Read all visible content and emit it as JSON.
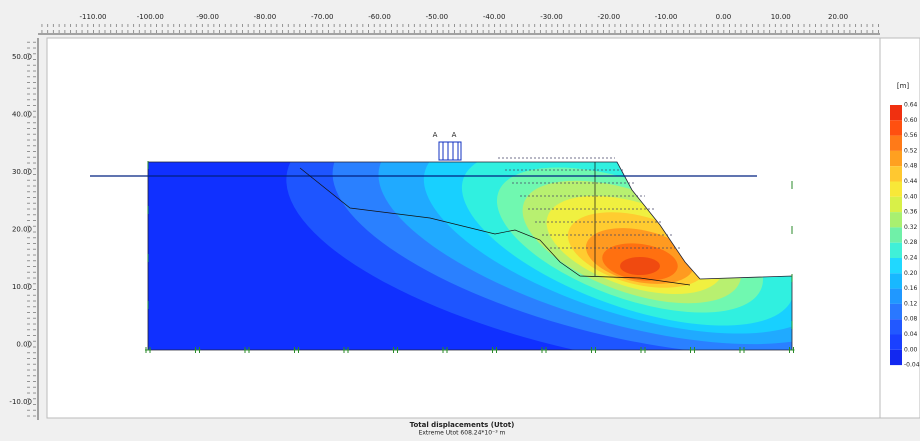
{
  "top_ruler": {
    "labels": [
      "-110.00",
      "-100.00",
      "-90.00",
      "-80.00",
      "-70.00",
      "-60.00",
      "-50.00",
      "-40.00",
      "-30.00",
      "-20.00",
      "-10.00",
      "0.00",
      "10.00",
      "20.00"
    ]
  },
  "left_ruler": {
    "labels": [
      "50.00",
      "40.00",
      "30.00",
      "20.00",
      "10.00",
      "0.00",
      "-10.00"
    ]
  },
  "load_labels": [
    "A",
    "A"
  ],
  "legend": {
    "unit": "[m]",
    "labels": [
      "0.64",
      "0.60",
      "0.56",
      "0.52",
      "0.48",
      "0.44",
      "0.40",
      "0.36",
      "0.32",
      "0.28",
      "0.24",
      "0.20",
      "0.16",
      "0.12",
      "0.08",
      "0.04",
      "0.00",
      "-0.04"
    ]
  },
  "footer": {
    "title": "Total displacements (Utot)",
    "subtitle": "Extreme Utot 608.24*10⁻³ m"
  }
}
